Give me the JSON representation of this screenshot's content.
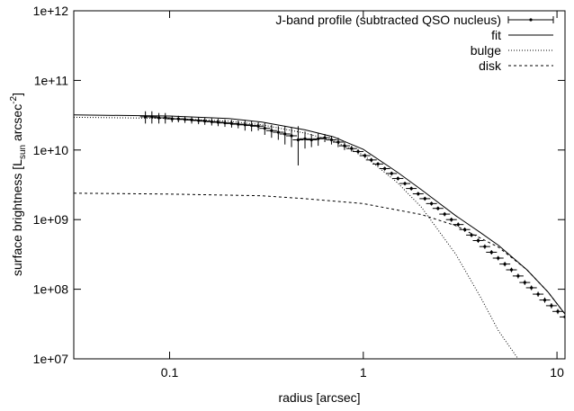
{
  "chart_data": {
    "type": "scatter",
    "log_x": true,
    "log_y": true,
    "xlabel": "radius [arcsec]",
    "ylabel_parts": [
      "surface brightness [L",
      "sun",
      " arcsec",
      "-2",
      "]"
    ],
    "xlim": [
      0.032,
      11
    ],
    "ylim": [
      10000000.0,
      1000000000000.0
    ],
    "xticks": [
      0.1,
      1,
      10
    ],
    "yticks": [
      {
        "value": 10000000.0,
        "label": "1e+07"
      },
      {
        "value": 100000000.0,
        "label": "1e+08"
      },
      {
        "value": 1000000000.0,
        "label": "1e+09"
      },
      {
        "value": 10000000000.0,
        "label": "1e+10"
      },
      {
        "value": 100000000000.0,
        "label": "1e+11"
      },
      {
        "value": 1000000000000.0,
        "label": "1e+12"
      }
    ],
    "legend_position": "upper right",
    "series": [
      {
        "name": "J-band profile (subtracted QSO nucleus)",
        "style": "errorbar",
        "color": "#000000",
        "x": [
          0.075,
          0.081,
          0.088,
          0.095,
          0.103,
          0.111,
          0.12,
          0.13,
          0.141,
          0.152,
          0.165,
          0.178,
          0.193,
          0.209,
          0.226,
          0.245,
          0.265,
          0.287,
          0.31,
          0.336,
          0.364,
          0.394,
          0.426,
          0.461,
          0.5,
          0.54,
          0.585,
          0.633,
          0.685,
          0.742,
          0.8,
          0.87,
          0.94,
          1.02,
          1.1,
          1.19,
          1.29,
          1.4,
          1.51,
          1.64,
          1.77,
          1.92,
          2.08,
          2.25,
          2.43,
          2.63,
          2.85,
          3.09,
          3.34,
          3.62,
          3.92,
          4.24,
          4.59,
          4.97,
          5.38,
          5.82,
          6.3,
          6.82,
          7.38,
          7.99,
          8.65,
          9.36,
          10.1,
          11
        ],
        "values": [
          30000000000.0,
          30000000000.0,
          29000000000.0,
          29000000000.0,
          28000000000.0,
          28000000000.0,
          27500000000.0,
          27000000000.0,
          26500000000.0,
          26000000000.0,
          25500000000.0,
          25000000000.0,
          24500000000.0,
          24000000000.0,
          23500000000.0,
          23000000000.0,
          22500000000.0,
          22000000000.0,
          20500000000.0,
          19000000000.0,
          18000000000.0,
          17000000000.0,
          16000000000.0,
          14000000000.0,
          14500000000.0,
          14000000000.0,
          14500000000.0,
          15000000000.0,
          14000000000.0,
          13000000000.0,
          11500000000.0,
          10500000000.0,
          9500000000.0,
          8300000000.0,
          7200000000.0,
          6300000000.0,
          5400000000.0,
          4600000000.0,
          3900000000.0,
          3300000000.0,
          2800000000.0,
          2350000000.0,
          2000000000.0,
          1700000000.0,
          1450000000.0,
          1200000000.0,
          1000000000.0,
          850000000.0,
          720000000.0,
          600000000.0,
          500000000.0,
          410000000.0,
          340000000.0,
          280000000.0,
          230000000.0,
          190000000.0,
          155000000.0,
          125000000.0,
          105000000.0,
          85000000.0,
          70000000.0,
          58000000.0,
          48000000.0,
          40000000.0
        ],
        "yerr": [
          6000000000.0,
          6000000000.0,
          5000000000.0,
          5000000000.0,
          3000000000.0,
          3000000000.0,
          3000000000.0,
          3000000000.0,
          3000000000.0,
          3000000000.0,
          3000000000.0,
          3000000000.0,
          3000000000.0,
          3000000000.0,
          3000000000.0,
          4000000000.0,
          4000000000.0,
          3000000000.0,
          4000000000.0,
          4000000000.0,
          4000000000.0,
          5000000000.0,
          5000000000.0,
          8000000000.0,
          4000000000.0,
          3000000000.0,
          3000000000.0,
          2000000000.0,
          2000000000.0,
          2000000000.0,
          1500000000.0,
          1000000000.0,
          800000000.0,
          600000000.0,
          500000000.0,
          400000000.0,
          350000000.0,
          300000000.0,
          250000000.0,
          200000000.0,
          180000000.0,
          150000000.0,
          130000000.0,
          110000000.0,
          90000000.0,
          80000000.0,
          70000000.0,
          60000000.0,
          50000000.0,
          40000000.0,
          35000000.0,
          30000000.0,
          25000000.0,
          20000000.0,
          17000000.0,
          14000000.0,
          12000000.0,
          10000000.0,
          8000000.0,
          7000000.0,
          6000000.0,
          5000000.0,
          4000000.0,
          3500000.0
        ]
      },
      {
        "name": "fit",
        "style": "line",
        "dash": "none",
        "color": "#000000",
        "x": [
          0.032,
          0.1,
          0.2,
          0.3,
          0.5,
          0.7,
          1,
          1.5,
          2,
          3,
          4,
          5,
          7,
          9,
          11
        ],
        "values": [
          31900000000.0,
          30800000000.0,
          28400000000.0,
          25200000000.0,
          19500000000.0,
          15500000000.0,
          10200000000.0,
          4800000000.0,
          2680000000.0,
          1140000000.0,
          660000000.0,
          425000000.0,
          190000000.0,
          91000000.0,
          44000000.0
        ]
      },
      {
        "name": "bulge",
        "style": "line",
        "dash": "1,2",
        "color": "#000000",
        "x": [
          0.032,
          0.1,
          0.2,
          0.3,
          0.5,
          0.7,
          1,
          1.5,
          2,
          3,
          4,
          5,
          6.3
        ],
        "values": [
          29500000000.0,
          28500000000.0,
          26000000000.0,
          23000000000.0,
          17500000000.0,
          13500000000.0,
          8500000000.0,
          3400000000.0,
          1500000000.0,
          320000000.0,
          80000000.0,
          25000000.0,
          10000000.0
        ]
      },
      {
        "name": "disk",
        "style": "line",
        "dash": "3,3",
        "color": "#000000",
        "x": [
          0.032,
          0.1,
          0.3,
          0.5,
          1,
          2,
          3,
          5,
          7,
          9,
          11
        ],
        "values": [
          2400000000.0,
          2330000000.0,
          2200000000.0,
          2000000000.0,
          1700000000.0,
          1180000000.0,
          820000000.0,
          400000000.0,
          190000000.0,
          91000000.0,
          44000000.0
        ]
      }
    ]
  }
}
